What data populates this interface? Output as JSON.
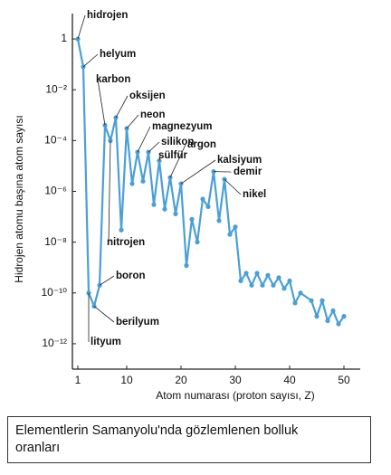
{
  "chart_data": {
    "type": "line",
    "x_label": "Atom numarası (proton sayısı, Z)",
    "y_label": "Hidrojen atomu başına atom sayısı",
    "caption": "Elementlerin Samanyolu'nda gözlemlenen bolluk oranları",
    "log_y": true,
    "xlim": [
      0,
      53
    ],
    "ylim": [
      1e-13,
      10
    ],
    "xticks": [
      1,
      10,
      20,
      30,
      40,
      50
    ],
    "yticks": [
      {
        "value": 1,
        "label": "1"
      },
      {
        "value": 0.01,
        "label": "10⁻²"
      },
      {
        "value": 0.0001,
        "label": "10⁻⁴"
      },
      {
        "value": 1e-06,
        "label": "10⁻⁶"
      },
      {
        "value": 1e-08,
        "label": "10⁻⁸"
      },
      {
        "value": 1e-10,
        "label": "10⁻¹⁰"
      },
      {
        "value": 1e-12,
        "label": "10⁻¹²"
      }
    ],
    "x": [
      1,
      2,
      3,
      4,
      5,
      6,
      7,
      8,
      9,
      10,
      11,
      12,
      13,
      14,
      15,
      16,
      17,
      18,
      19,
      20,
      21,
      22,
      23,
      24,
      25,
      26,
      27,
      28,
      29,
      30,
      31,
      32,
      33,
      34,
      35,
      36,
      37,
      38,
      39,
      40,
      41,
      42,
      44,
      45,
      46,
      47,
      48,
      49,
      50
    ],
    "series": [
      {
        "color": "#4a9fd8",
        "values": [
          1,
          0.08,
          1e-10,
          3e-11,
          2e-10,
          0.0004,
          0.0001,
          0.0008,
          3e-08,
          0.0003,
          2e-06,
          3.5e-05,
          2.5e-06,
          3.5e-05,
          3e-07,
          1.6e-05,
          2e-07,
          3.5e-06,
          1.3e-07,
          2e-06,
          1.2e-09,
          8e-08,
          1e-08,
          5e-07,
          2.5e-07,
          6e-06,
          7e-08,
          3e-06,
          2e-08,
          4e-08,
          3e-10,
          6e-10,
          2e-10,
          6e-10,
          2e-10,
          5e-10,
          2e-10,
          4e-10,
          1.5e-10,
          3e-10,
          4e-11,
          1e-10,
          5e-11,
          1.2e-11,
          5e-11,
          8e-12,
          2e-11,
          6e-12,
          1.2e-11
        ]
      }
    ],
    "annotations": [
      "hidrojen",
      "helyum",
      "karbon",
      "oksijen",
      "neon",
      "magnezyum",
      "silikon",
      "sülfür",
      "argon",
      "kalsiyum",
      "demir",
      "nikel",
      "nitrojen",
      "boron",
      "berilyum",
      "lityum"
    ]
  }
}
